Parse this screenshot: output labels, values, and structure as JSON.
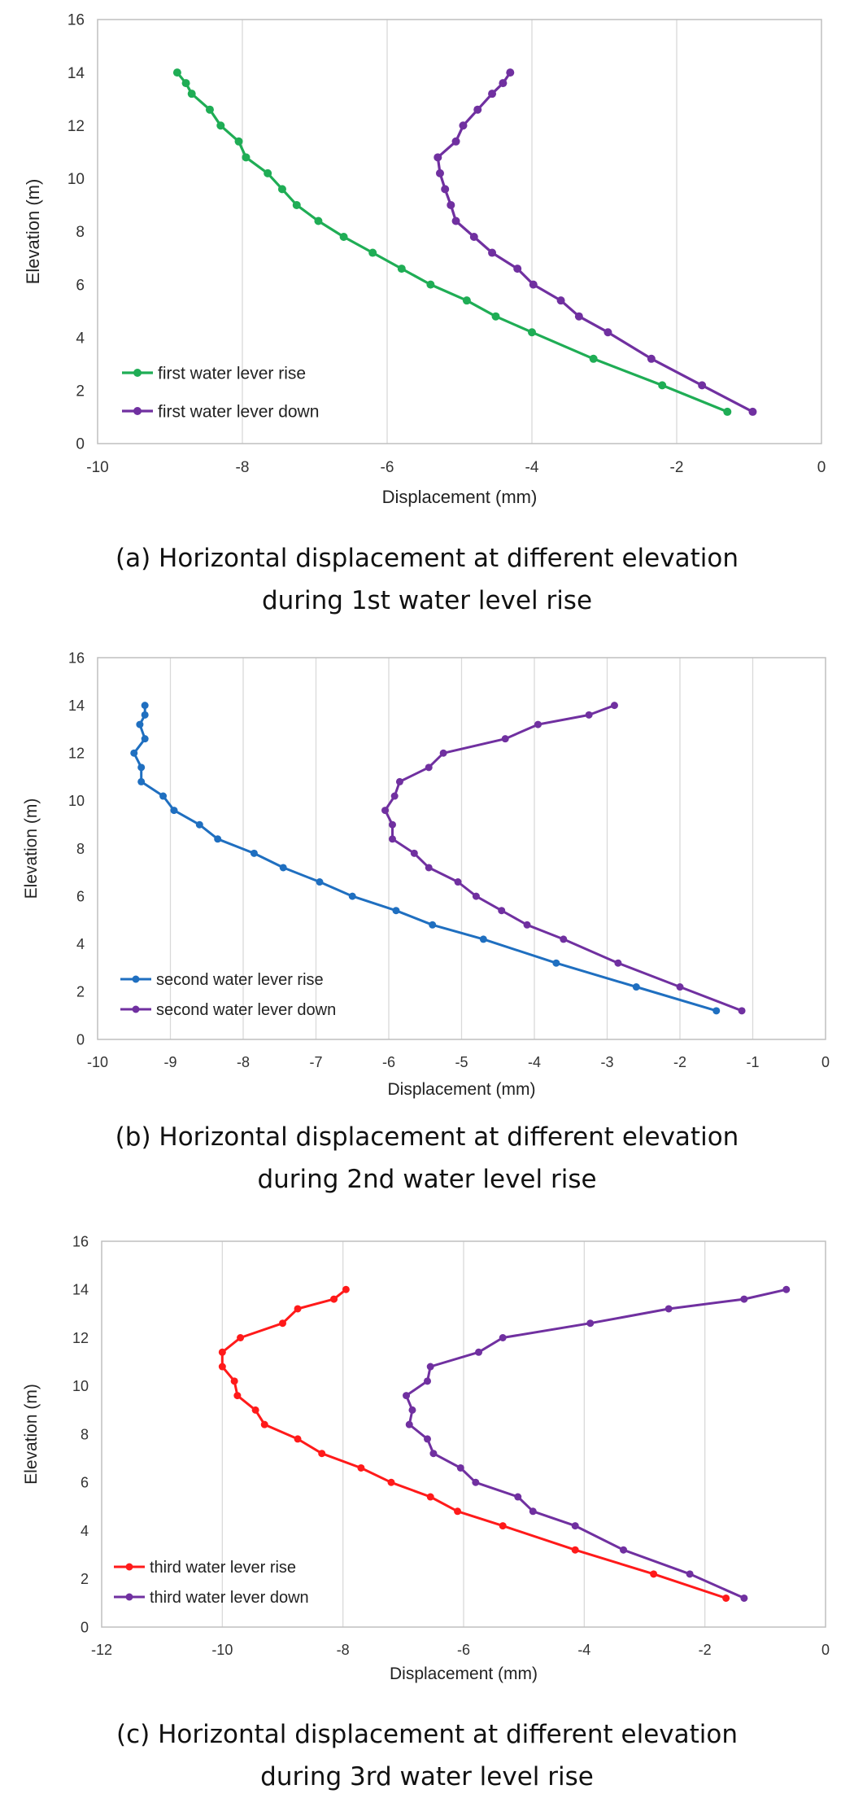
{
  "chart_data": [
    {
      "type": "line",
      "xlabel": "Displacement (mm)",
      "ylabel": "Elevation (m)",
      "xlim": [
        -10,
        0
      ],
      "ylim": [
        0,
        16
      ],
      "xticks": [
        -10,
        -8,
        -6,
        -4,
        -2,
        0
      ],
      "yticks": [
        0,
        2,
        4,
        6,
        8,
        10,
        12,
        14,
        16
      ],
      "grid": "vertical",
      "legend": "bottom-left",
      "series": [
        {
          "name": "first water lever rise",
          "color": "#1fad55",
          "points": [
            [
              -8.9,
              14.0
            ],
            [
              -8.78,
              13.6
            ],
            [
              -8.7,
              13.2
            ],
            [
              -8.45,
              12.6
            ],
            [
              -8.3,
              12.0
            ],
            [
              -8.05,
              11.4
            ],
            [
              -7.95,
              10.8
            ],
            [
              -7.65,
              10.2
            ],
            [
              -7.45,
              9.6
            ],
            [
              -7.25,
              9.0
            ],
            [
              -6.95,
              8.4
            ],
            [
              -6.6,
              7.8
            ],
            [
              -6.2,
              7.2
            ],
            [
              -5.8,
              6.6
            ],
            [
              -5.4,
              6.0
            ],
            [
              -4.9,
              5.4
            ],
            [
              -4.5,
              4.8
            ],
            [
              -4.0,
              4.2
            ],
            [
              -3.15,
              3.2
            ],
            [
              -2.2,
              2.2
            ],
            [
              -1.3,
              1.2
            ]
          ]
        },
        {
          "name": "first water lever down",
          "color": "#7030a0",
          "points": [
            [
              -4.3,
              14.0
            ],
            [
              -4.4,
              13.6
            ],
            [
              -4.55,
              13.2
            ],
            [
              -4.75,
              12.6
            ],
            [
              -4.95,
              12.0
            ],
            [
              -5.05,
              11.4
            ],
            [
              -5.3,
              10.8
            ],
            [
              -5.27,
              10.2
            ],
            [
              -5.2,
              9.6
            ],
            [
              -5.12,
              9.0
            ],
            [
              -5.05,
              8.4
            ],
            [
              -4.8,
              7.8
            ],
            [
              -4.55,
              7.2
            ],
            [
              -4.2,
              6.6
            ],
            [
              -3.98,
              6.0
            ],
            [
              -3.6,
              5.4
            ],
            [
              -3.35,
              4.8
            ],
            [
              -2.95,
              4.2
            ],
            [
              -2.35,
              3.2
            ],
            [
              -1.65,
              2.2
            ],
            [
              -0.95,
              1.2
            ]
          ]
        }
      ]
    },
    {
      "type": "line",
      "xlabel": "Displacement (mm)",
      "ylabel": "Elevation (m)",
      "xlim": [
        -10,
        0
      ],
      "ylim": [
        0,
        16
      ],
      "xticks": [
        -10,
        -9,
        -8,
        -7,
        -6,
        -5,
        -4,
        -3,
        -2,
        -1,
        0
      ],
      "yticks": [
        0,
        2,
        4,
        6,
        8,
        10,
        12,
        14,
        16
      ],
      "grid": "vertical",
      "legend": "bottom-left",
      "series": [
        {
          "name": "second water lever rise",
          "color": "#1f6fc0",
          "points": [
            [
              -9.35,
              14.0
            ],
            [
              -9.35,
              13.6
            ],
            [
              -9.42,
              13.2
            ],
            [
              -9.35,
              12.6
            ],
            [
              -9.5,
              12.0
            ],
            [
              -9.4,
              11.4
            ],
            [
              -9.4,
              10.8
            ],
            [
              -9.1,
              10.2
            ],
            [
              -8.95,
              9.6
            ],
            [
              -8.6,
              9.0
            ],
            [
              -8.35,
              8.4
            ],
            [
              -7.85,
              7.8
            ],
            [
              -7.45,
              7.2
            ],
            [
              -6.95,
              6.6
            ],
            [
              -6.5,
              6.0
            ],
            [
              -5.9,
              5.4
            ],
            [
              -5.4,
              4.8
            ],
            [
              -4.7,
              4.2
            ],
            [
              -3.7,
              3.2
            ],
            [
              -2.6,
              2.2
            ],
            [
              -1.5,
              1.2
            ]
          ]
        },
        {
          "name": "second water lever down",
          "color": "#7030a0",
          "points": [
            [
              -2.9,
              14.0
            ],
            [
              -3.25,
              13.6
            ],
            [
              -3.95,
              13.2
            ],
            [
              -4.4,
              12.6
            ],
            [
              -5.25,
              12.0
            ],
            [
              -5.45,
              11.4
            ],
            [
              -5.85,
              10.8
            ],
            [
              -5.92,
              10.2
            ],
            [
              -6.05,
              9.6
            ],
            [
              -5.95,
              9.0
            ],
            [
              -5.95,
              8.4
            ],
            [
              -5.65,
              7.8
            ],
            [
              -5.45,
              7.2
            ],
            [
              -5.05,
              6.6
            ],
            [
              -4.8,
              6.0
            ],
            [
              -4.45,
              5.4
            ],
            [
              -4.1,
              4.8
            ],
            [
              -3.6,
              4.2
            ],
            [
              -2.85,
              3.2
            ],
            [
              -2.0,
              2.2
            ],
            [
              -1.15,
              1.2
            ]
          ]
        }
      ]
    },
    {
      "type": "line",
      "xlabel": "Displacement (mm)",
      "ylabel": "Elevation (m)",
      "xlim": [
        -12,
        0
      ],
      "ylim": [
        0,
        16
      ],
      "xticks": [
        -12,
        -10,
        -8,
        -6,
        -4,
        -2,
        0
      ],
      "yticks": [
        0,
        2,
        4,
        6,
        8,
        10,
        12,
        14,
        16
      ],
      "grid": "vertical",
      "legend": "bottom-left",
      "series": [
        {
          "name": "third water lever rise",
          "color": "#ff1a1a",
          "points": [
            [
              -7.95,
              14.0
            ],
            [
              -8.15,
              13.6
            ],
            [
              -8.75,
              13.2
            ],
            [
              -9.0,
              12.6
            ],
            [
              -9.7,
              12.0
            ],
            [
              -10.0,
              11.4
            ],
            [
              -10.0,
              10.8
            ],
            [
              -9.8,
              10.2
            ],
            [
              -9.75,
              9.6
            ],
            [
              -9.45,
              9.0
            ],
            [
              -9.3,
              8.4
            ],
            [
              -8.75,
              7.8
            ],
            [
              -8.35,
              7.2
            ],
            [
              -7.7,
              6.6
            ],
            [
              -7.2,
              6.0
            ],
            [
              -6.55,
              5.4
            ],
            [
              -6.1,
              4.8
            ],
            [
              -5.35,
              4.2
            ],
            [
              -4.15,
              3.2
            ],
            [
              -2.85,
              2.2
            ],
            [
              -1.65,
              1.2
            ]
          ]
        },
        {
          "name": "third water lever down",
          "color": "#7030a0",
          "points": [
            [
              -0.65,
              14.0
            ],
            [
              -1.35,
              13.6
            ],
            [
              -2.6,
              13.2
            ],
            [
              -3.9,
              12.6
            ],
            [
              -5.35,
              12.0
            ],
            [
              -5.75,
              11.4
            ],
            [
              -6.55,
              10.8
            ],
            [
              -6.6,
              10.2
            ],
            [
              -6.95,
              9.6
            ],
            [
              -6.85,
              9.0
            ],
            [
              -6.9,
              8.4
            ],
            [
              -6.6,
              7.8
            ],
            [
              -6.5,
              7.2
            ],
            [
              -6.05,
              6.6
            ],
            [
              -5.8,
              6.0
            ],
            [
              -5.1,
              5.4
            ],
            [
              -4.85,
              4.8
            ],
            [
              -4.15,
              4.2
            ],
            [
              -3.35,
              3.2
            ],
            [
              -2.25,
              2.2
            ],
            [
              -1.35,
              1.2
            ]
          ]
        }
      ]
    }
  ],
  "captions": [
    {
      "line1": "(a) Horizontal displacement at different elevation",
      "line2": "during 1st water level rise"
    },
    {
      "line1": "(b) Horizontal displacement at different elevation",
      "line2": "during 2nd water level rise"
    },
    {
      "line1": "(c) Horizontal displacement at different elevation",
      "line2": "during 3rd water level rise"
    }
  ]
}
